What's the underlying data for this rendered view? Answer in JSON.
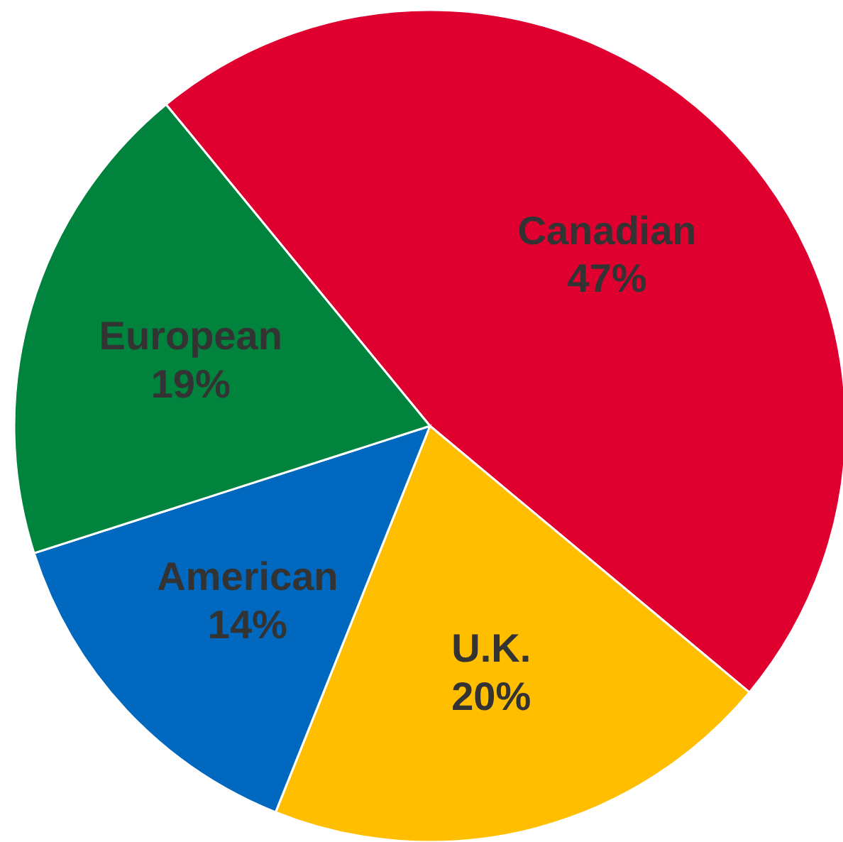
{
  "chart_data": {
    "type": "pie",
    "categories": [
      "Canadian",
      "U.K.",
      "American",
      "European"
    ],
    "values": [
      47,
      20,
      14,
      19
    ],
    "colors": [
      "#df0030",
      "#ffbf00",
      "#0069bf",
      "#00843d"
    ],
    "value_labels": [
      "47%",
      "20%",
      "14%",
      "19%"
    ]
  }
}
